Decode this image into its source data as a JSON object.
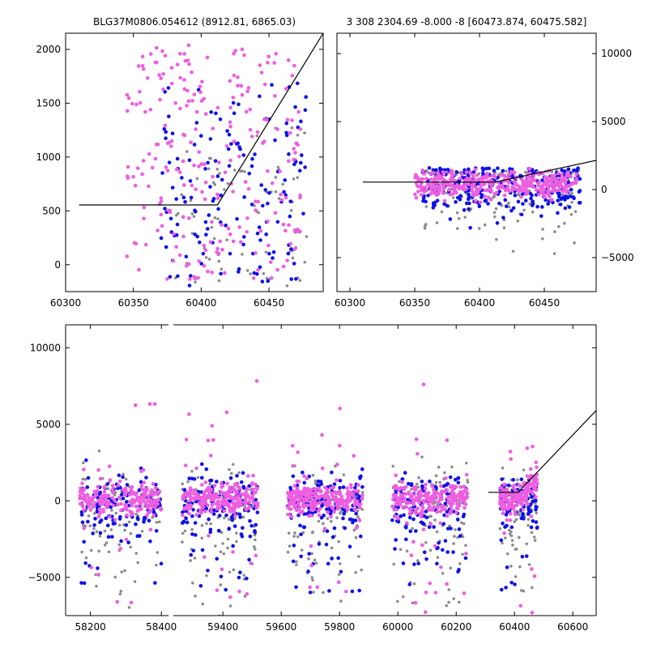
{
  "colors": {
    "magenta": "#ee5ee0",
    "blue": "#1010e8",
    "gray": "#8c8c8c",
    "line": "#000000"
  },
  "chart_data": [
    {
      "type": "scatter",
      "title": "BLG37M0806.054612 (8912.81, 6865.03)",
      "xlim": [
        60300,
        60490
      ],
      "ylim": [
        -250,
        2150
      ],
      "x_ticks": [
        60300,
        60350,
        60400,
        60450
      ],
      "y_ticks": [
        0,
        500,
        1000,
        1500,
        2000
      ],
      "y_axis_side": "left",
      "grid": false,
      "model_line": {
        "x": [
          60310,
          60412,
          60490
        ],
        "y": [
          555,
          555,
          2150
        ]
      },
      "series": [
        {
          "color": "magenta",
          "x_range": [
            60345,
            60475
          ],
          "y_range": [
            -150,
            2050
          ],
          "count": 240
        },
        {
          "color": "blue",
          "x_range": [
            60370,
            60478
          ],
          "y_range": [
            -200,
            1700
          ],
          "count": 150
        },
        {
          "color": "gray",
          "x_range": [
            60380,
            60478
          ],
          "y_range": [
            -200,
            1300
          ],
          "count": 80
        }
      ]
    },
    {
      "type": "scatter",
      "title": "3 308 2304.69 -8.000 -8 [60473.874, 60475.582]",
      "xlim": [
        60290,
        60490
      ],
      "ylim": [
        -7500,
        11500
      ],
      "x_ticks": [
        60300,
        60350,
        60400,
        60450
      ],
      "y_ticks": [
        -5000,
        0,
        5000,
        10000
      ],
      "y_axis_side": "right",
      "grid": false,
      "model_line": {
        "x": [
          60310,
          60412,
          60490
        ],
        "y": [
          555,
          555,
          2150
        ]
      },
      "series": [
        {
          "color": "magenta",
          "x_range": [
            60350,
            60475
          ],
          "y_range": [
            -1000,
            1600
          ],
          "count": 380
        },
        {
          "color": "blue",
          "x_range": [
            60355,
            60478
          ],
          "y_range": [
            -4000,
            1600
          ],
          "count": 260
        },
        {
          "color": "gray",
          "x_range": [
            60355,
            60478
          ],
          "y_range": [
            -6500,
            1400
          ],
          "count": 160
        }
      ]
    },
    {
      "type": "scatter",
      "title": "",
      "xlim": [
        58130,
        60680
      ],
      "ylim": [
        -7500,
        11500
      ],
      "x_ticks": [
        58200,
        58400,
        59400,
        59600,
        59800,
        60000,
        60200,
        60400,
        60600
      ],
      "y_ticks": [
        -5000,
        0,
        5000,
        10000
      ],
      "y_axis_side": "left",
      "grid": false,
      "axis_break": true,
      "model_line": {
        "x": [
          60310,
          60412,
          60680
        ],
        "y": [
          555,
          555,
          5900
        ]
      },
      "seasons": [
        {
          "x_range": [
            58170,
            58400
          ],
          "count": 420
        },
        {
          "x_range": [
            59260,
            59520
          ],
          "count": 480
        },
        {
          "x_range": [
            59620,
            59880
          ],
          "count": 480
        },
        {
          "x_range": [
            59980,
            60240
          ],
          "count": 480
        },
        {
          "x_range": [
            60350,
            60478
          ],
          "count": 320
        }
      ]
    }
  ]
}
